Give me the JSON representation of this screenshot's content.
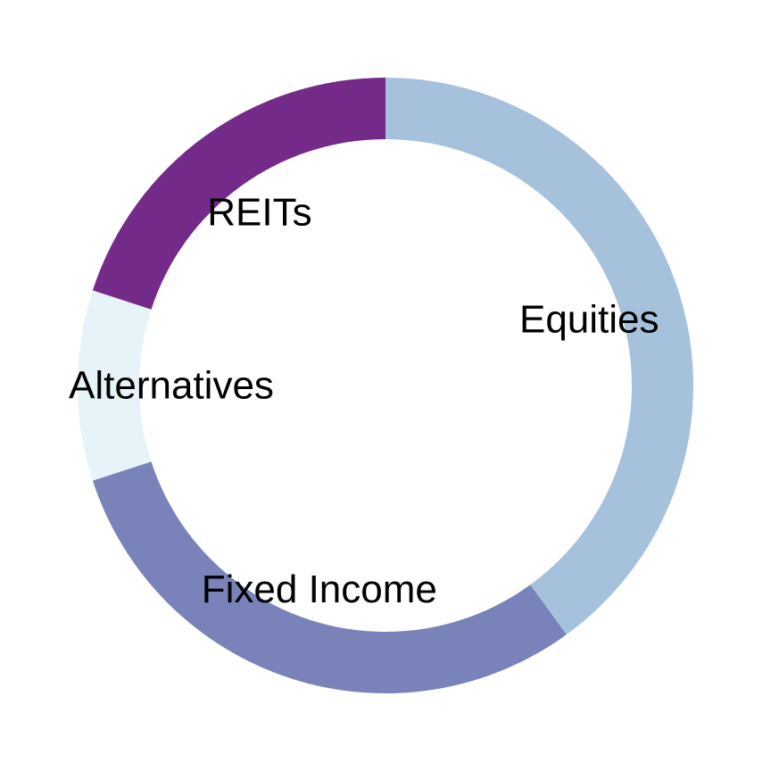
{
  "chart_data": {
    "type": "pie",
    "variant": "donut",
    "title": "",
    "categories": [
      "Equities",
      "Fixed Income",
      "Alternatives",
      "REITs"
    ],
    "values": [
      40,
      30,
      10,
      20
    ],
    "colors": [
      "#a6c1dc",
      "#7a83b9",
      "#e6f4f9",
      "#742a89"
    ],
    "start_angle_deg": 90,
    "direction": "clockwise",
    "legend": "none"
  }
}
